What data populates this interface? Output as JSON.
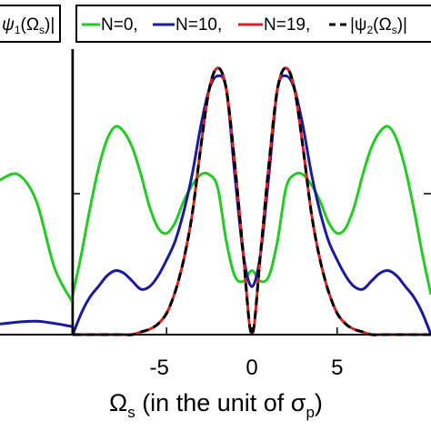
{
  "chart_data": [
    {
      "type": "line",
      "legend": {
        "entries": [
          {
            "text_left": "ψ",
            "text_sub": "1",
            "text_mid": "(Ω",
            "text_sub2": "s",
            "text_right": ")|"
          }
        ]
      },
      "series": [
        {
          "color": "#0000a0",
          "values_note": ""
        }
      ]
    },
    {
      "type": "line",
      "xlabel": {
        "main": "Ω",
        "sub": "s",
        "rest": " (in the unit of σ",
        "sub2": "p",
        "close": ")"
      },
      "xticks": [
        -5,
        0,
        5
      ],
      "xlim": [
        -10.5,
        10.5
      ],
      "ylim": [
        0,
        1.05
      ],
      "grid": false,
      "legend_placement": "top",
      "legend": {
        "entries": [
          {
            "label": "N=0,",
            "color": "#22cc22",
            "style": "solid"
          },
          {
            "label": "N=10,",
            "color": "#1a1aa0",
            "style": "solid"
          },
          {
            "label": "N=19,",
            "color": "#dd2020",
            "style": "solid"
          },
          {
            "label": "|ψ",
            "sub": "2",
            "mid": "(Ω",
            "sub2": "s",
            "close": ")|",
            "color": "#000000",
            "style": "dashed"
          }
        ]
      },
      "series": [
        {
          "name": "N=0,",
          "color": "#22cc22",
          "x": [
            -10.5,
            -10,
            -9.5,
            -9,
            -8.5,
            -8,
            -7.5,
            -7,
            -6.5,
            -6,
            -5.5,
            -5,
            -4.5,
            -4,
            -3.5,
            -3,
            -2.5,
            -2,
            -1.5,
            -1,
            -0.5,
            0,
            0.5,
            1,
            1.5,
            2,
            2.5,
            3,
            3.5,
            4,
            4.5,
            5,
            5.5,
            6,
            6.5,
            7,
            7.5,
            8,
            8.5,
            9,
            9.5,
            10,
            10.5
          ],
          "y": [
            0.15,
            0.3,
            0.47,
            0.62,
            0.73,
            0.78,
            0.76,
            0.7,
            0.6,
            0.48,
            0.4,
            0.38,
            0.42,
            0.5,
            0.56,
            0.6,
            0.6,
            0.55,
            0.35,
            0.22,
            0.2,
            0.24,
            0.2,
            0.22,
            0.35,
            0.55,
            0.6,
            0.6,
            0.56,
            0.5,
            0.42,
            0.38,
            0.4,
            0.48,
            0.6,
            0.7,
            0.76,
            0.78,
            0.73,
            0.62,
            0.47,
            0.3,
            0.15
          ]
        },
        {
          "name": "N=10,",
          "color": "#1a1aa0",
          "x": [
            -10.5,
            -10,
            -9.5,
            -9,
            -8.5,
            -8,
            -7.5,
            -7,
            -6.5,
            -6,
            -5.5,
            -5,
            -4.5,
            -4,
            -3.5,
            -3,
            -2.5,
            -2,
            -1.5,
            -1,
            -0.5,
            0,
            0.5,
            1,
            1.5,
            2,
            2.5,
            3,
            3.5,
            4,
            4.5,
            5,
            5.5,
            6,
            6.5,
            7,
            7.5,
            8,
            8.5,
            9,
            9.5,
            10,
            10.5
          ],
          "y": [
            0.0,
            0.08,
            0.14,
            0.18,
            0.22,
            0.24,
            0.23,
            0.2,
            0.17,
            0.18,
            0.22,
            0.28,
            0.35,
            0.46,
            0.6,
            0.78,
            0.92,
            0.97,
            0.92,
            0.6,
            0.3,
            0.18,
            0.3,
            0.6,
            0.92,
            0.97,
            0.92,
            0.78,
            0.6,
            0.46,
            0.35,
            0.28,
            0.22,
            0.18,
            0.17,
            0.2,
            0.23,
            0.24,
            0.22,
            0.18,
            0.14,
            0.08,
            0.0
          ]
        },
        {
          "name": "N=19,",
          "color": "#dd2020",
          "x": [
            -10.5,
            -10,
            -9.5,
            -9,
            -8.5,
            -8,
            -7.5,
            -7,
            -6.5,
            -6,
            -5.5,
            -5,
            -4.5,
            -4,
            -3.5,
            -3,
            -2.5,
            -2,
            -1.5,
            -1,
            -0.5,
            0,
            0.5,
            1,
            1.5,
            2,
            2.5,
            3,
            3.5,
            4,
            4.5,
            5,
            5.5,
            6,
            6.5,
            7,
            7.5,
            8,
            8.5,
            9,
            9.5,
            10,
            10.5
          ],
          "y": [
            0.0,
            0.0,
            0.0,
            0.0,
            0.0,
            0.0,
            0.0,
            0.0,
            0.01,
            0.02,
            0.04,
            0.08,
            0.16,
            0.28,
            0.45,
            0.7,
            0.92,
            1.0,
            0.92,
            0.64,
            0.3,
            0.0,
            0.3,
            0.64,
            0.92,
            1.0,
            0.92,
            0.7,
            0.45,
            0.28,
            0.16,
            0.08,
            0.04,
            0.02,
            0.01,
            0.0,
            0.0,
            0.0,
            0.0,
            0.0,
            0.0,
            0.0,
            0.0
          ]
        },
        {
          "name": "|ψ2(Ωs)|",
          "color": "#000000",
          "dashed": true,
          "x": [
            -10.5,
            -10,
            -9.5,
            -9,
            -8.5,
            -8,
            -7.5,
            -7,
            -6.5,
            -6,
            -5.5,
            -5,
            -4.5,
            -4,
            -3.5,
            -3,
            -2.5,
            -2,
            -1.5,
            -1,
            -0.5,
            0,
            0.5,
            1,
            1.5,
            2,
            2.5,
            3,
            3.5,
            4,
            4.5,
            5,
            5.5,
            6,
            6.5,
            7,
            7.5,
            8,
            8.5,
            9,
            9.5,
            10,
            10.5
          ],
          "y": [
            0.0,
            0.0,
            0.0,
            0.0,
            0.0,
            0.0,
            0.0,
            0.0,
            0.01,
            0.02,
            0.04,
            0.08,
            0.16,
            0.28,
            0.45,
            0.7,
            0.92,
            1.0,
            0.92,
            0.64,
            0.3,
            0.0,
            0.3,
            0.64,
            0.92,
            1.0,
            0.92,
            0.7,
            0.45,
            0.28,
            0.16,
            0.08,
            0.04,
            0.02,
            0.01,
            0.0,
            0.0,
            0.0,
            0.0,
            0.0,
            0.0,
            0.0,
            0.0
          ]
        }
      ]
    }
  ],
  "left_panel": {
    "series": [
      {
        "color": "#22cc22",
        "x": [
          0,
          0.25,
          0.5,
          0.75,
          1
        ],
        "y": [
          0.58,
          0.6,
          0.5,
          0.25,
          0.12
        ]
      },
      {
        "color": "#1a1aa0",
        "x": [
          0,
          0.5,
          1
        ],
        "y": [
          0.04,
          0.05,
          0.03
        ]
      }
    ]
  }
}
